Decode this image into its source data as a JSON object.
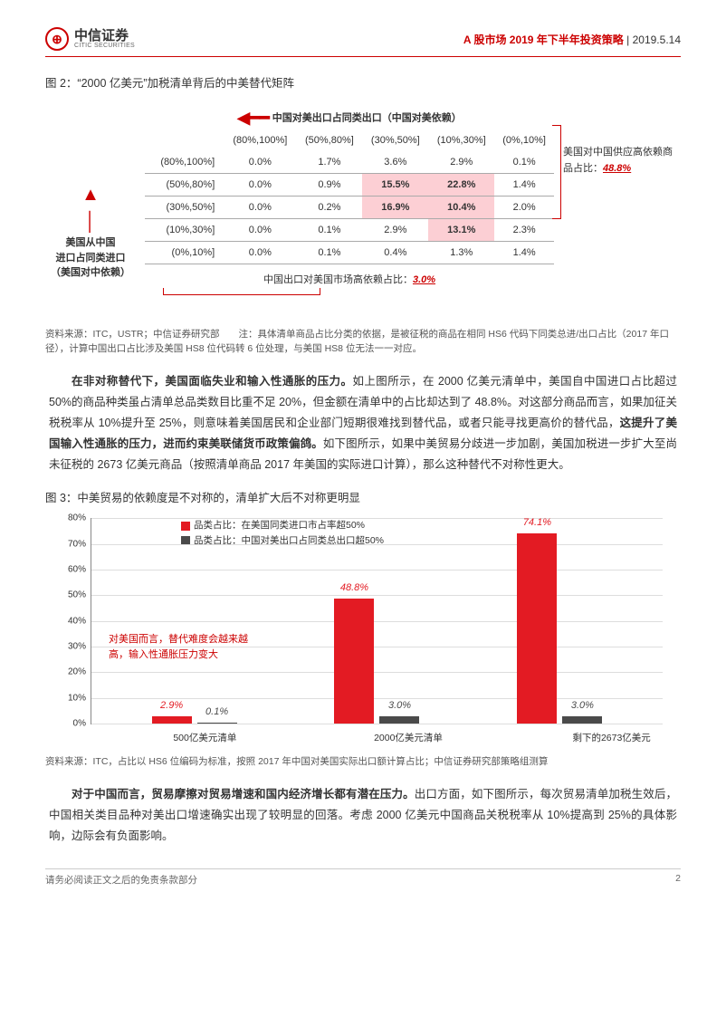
{
  "header": {
    "logo_cn": "中信证券",
    "logo_en": "CITIC SECURITIES",
    "title": "A 股市场 2019 年下半年投资策略",
    "date": "2019.5.14"
  },
  "fig2": {
    "title": "图 2：“2000 亿美元”加税清单背后的中美替代矩阵",
    "top_label": "中国对美出口占同类出口（中国对美依赖）",
    "col_headers": [
      "(80%,100%]",
      "(50%,80%]",
      "(30%,50%]",
      "(10%,30%]",
      "(0%,10%]"
    ],
    "row_headers": [
      "(80%,100%]",
      "(50%,80%]",
      "(30%,50%]",
      "(10%,30%]",
      "(0%,10%]"
    ],
    "left_label_l1": "美国从中国",
    "left_label_l2": "进口占同类进口",
    "left_label_l3": "（美国对中依赖）",
    "cells": [
      [
        "0.0%",
        "1.7%",
        "3.6%",
        "2.9%",
        "0.1%"
      ],
      [
        "0.0%",
        "0.9%",
        "15.5%",
        "22.8%",
        "1.4%"
      ],
      [
        "0.0%",
        "0.2%",
        "16.9%",
        "10.4%",
        "2.0%"
      ],
      [
        "0.0%",
        "0.1%",
        "2.9%",
        "13.1%",
        "2.3%"
      ],
      [
        "0.0%",
        "0.1%",
        "0.4%",
        "1.3%",
        "1.4%"
      ]
    ],
    "highlights": [
      [
        1,
        2
      ],
      [
        1,
        3
      ],
      [
        2,
        2
      ],
      [
        2,
        3
      ],
      [
        3,
        3
      ]
    ],
    "right_anno_text": "美国对中国供应高依赖商品占比：",
    "right_anno_pct": "48.8%",
    "bottom_anno_text": "中国出口对美国市场高依赖占比：",
    "bottom_anno_pct": "3.0%",
    "source": "资料来源：ITC，USTR；中信证券研究部　　注：具体清单商品占比分类的依据，是被征税的商品在相同 HS6 代码下同类总进/出口占比（2017 年口径），计算中国出口占比涉及美国 HS8 位代码转 6 位处理，与美国 HS8 位无法一一对应。"
  },
  "para1": {
    "lead": "在非对称替代下，美国面临失业和输入性通胀的压力。",
    "body1": "如上图所示，在 2000 亿美元清单中，美国自中国进口占比超过 50%的商品种类虽占清单总品类数目比重不足 20%，但金额在清单中的占比却达到了 48.8%。对这部分商品而言，如果加征关税税率从 10%提升至 25%，则意味着美国居民和企业部门短期很难找到替代品，或者只能寻找更高价的替代品，",
    "bold_mid": "这提升了美国输入性通胀的压力，进而约束美联储货币政策偏鸽。",
    "body2": "如下图所示，如果中美贸易分歧进一步加剧，美国加税进一步扩大至尚未征税的 2673 亿美元商品（按照清单商品 2017 年美国的实际进口计算），那么这种替代不对称性更大。"
  },
  "fig3": {
    "title": "图 3：中美贸易的依赖度是不对称的，清单扩大后不对称更明显",
    "legend1": "品类占比：在美国同类进口市占率超50%",
    "legend2": "品类占比：中国对美出口占同类总出口超50%",
    "series1_color": "#e31b23",
    "series2_color": "#4a4a4a",
    "ymax": 80,
    "ytick_step": 10,
    "categories": [
      "500亿美元清单",
      "2000亿美元清单",
      "剩下的2673亿美元"
    ],
    "values1": [
      2.9,
      48.8,
      74.1
    ],
    "values2": [
      0.1,
      3.0,
      3.0
    ],
    "labels1": [
      "2.9%",
      "48.8%",
      "74.1%"
    ],
    "labels2": [
      "0.1%",
      "3.0%",
      "3.0%"
    ],
    "anno": "对美国而言，替代难度会越来越高，输入性通胀压力变大",
    "source": "资料来源：ITC，占比以 HS6 位编码为标准，按照 2017 年中国对美国实际出口额计算占比；中信证券研究部策略组测算"
  },
  "para2": {
    "lead": "对于中国而言，贸易摩擦对贸易增速和国内经济增长都有潜在压力。",
    "body": "出口方面，如下图所示，每次贸易清单加税生效后，中国相关类目品种对美出口增速确实出现了较明显的回落。考虑 2000 亿美元中国商品关税税率从 10%提高到 25%的具体影响，边际会有负面影响。"
  },
  "footer": {
    "left": "请务必阅读正文之后的免责条款部分",
    "page": "2"
  }
}
